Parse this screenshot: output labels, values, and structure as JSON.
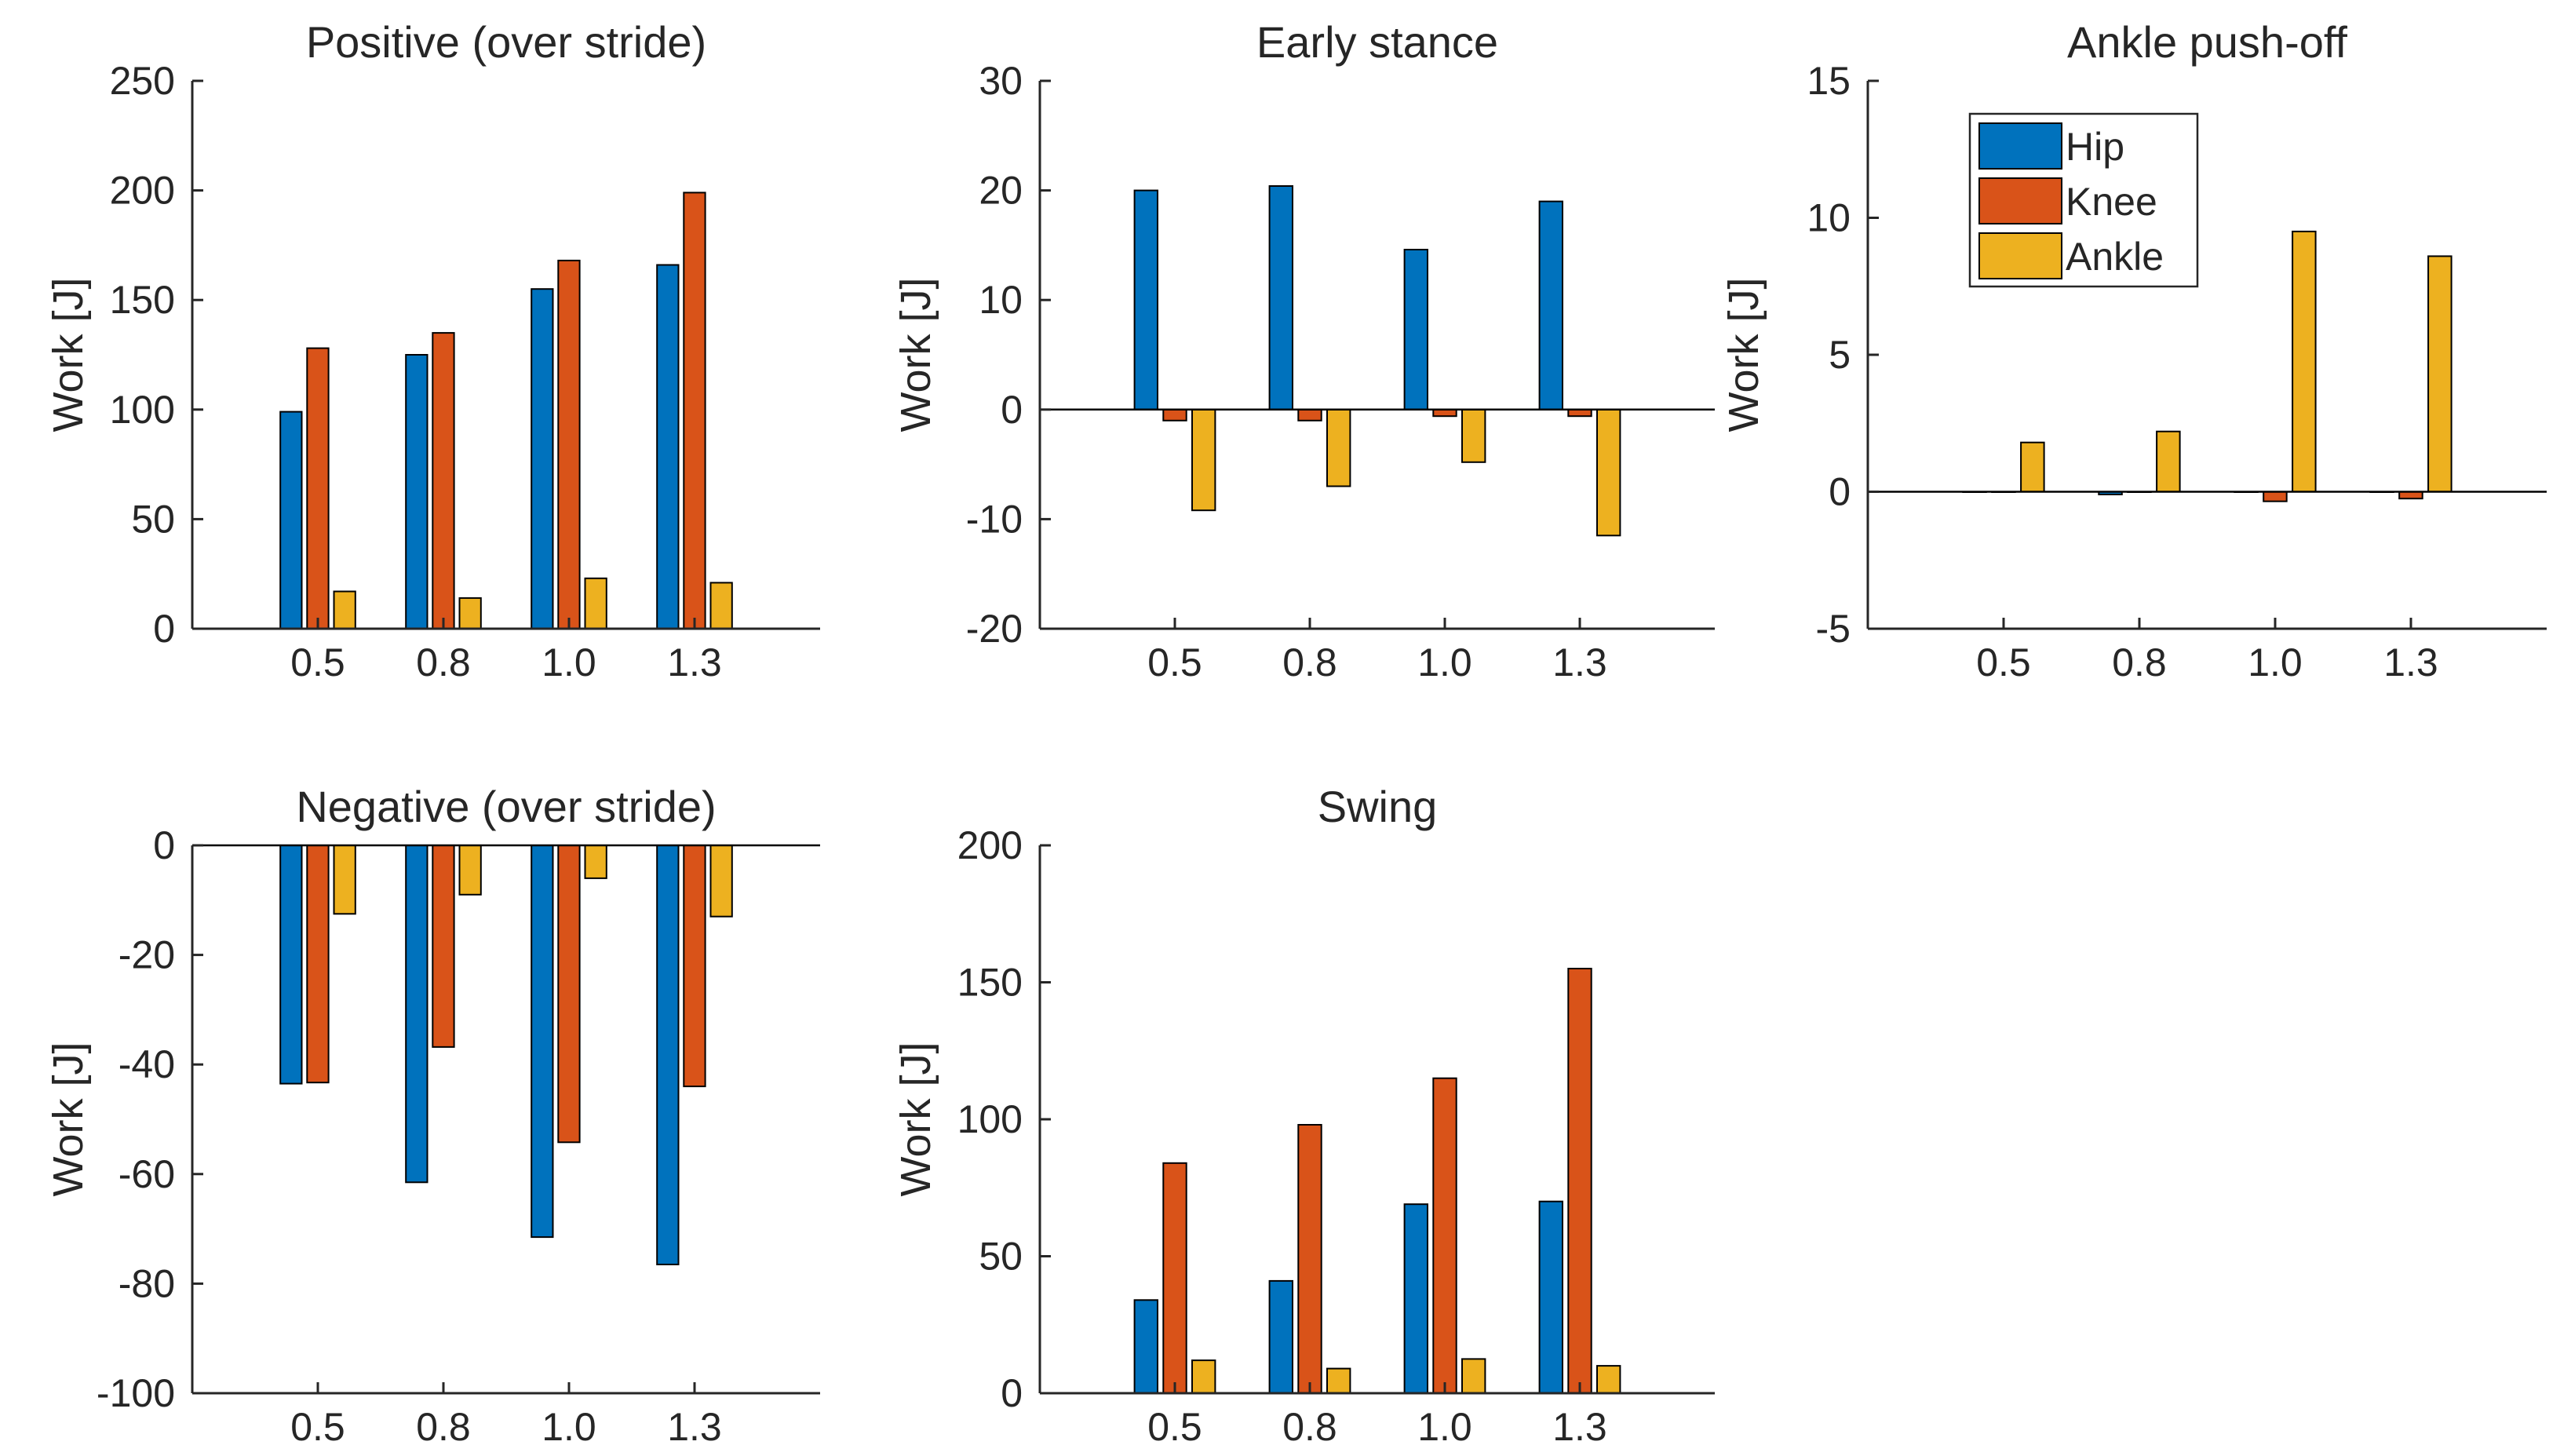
{
  "colors": {
    "hip": "#0072BD",
    "knee": "#D95319",
    "ankle": "#EDB120",
    "axis": "#262626",
    "background": "#ffffff"
  },
  "legend": {
    "placement": "top-left of Ankle push-off panel",
    "items": [
      "Hip",
      "Knee",
      "Ankle"
    ]
  },
  "chart_data": [
    {
      "type": "bar",
      "title": "Positive (over stride)",
      "xlabel": "",
      "ylabel": "Work [J]",
      "categories": [
        "0.5",
        "0.8",
        "1.0",
        "1.3"
      ],
      "ylim": [
        0,
        250
      ],
      "yticks": [
        0,
        50,
        100,
        150,
        200,
        250
      ],
      "ytick_labels": [
        "0",
        "50",
        "100",
        "150",
        "200",
        "250"
      ],
      "series": [
        {
          "name": "Hip",
          "values": [
            99,
            125,
            155,
            166
          ]
        },
        {
          "name": "Knee",
          "values": [
            128,
            135,
            168,
            199
          ]
        },
        {
          "name": "Ankle",
          "values": [
            17,
            14,
            23,
            21
          ]
        }
      ]
    },
    {
      "type": "bar",
      "title": "Early stance",
      "xlabel": "",
      "ylabel": "Work [J]",
      "categories": [
        "0.5",
        "0.8",
        "1.0",
        "1.3"
      ],
      "ylim": [
        -20,
        30
      ],
      "yticks": [
        -20,
        -10,
        0,
        10,
        20,
        30
      ],
      "ytick_labels": [
        "-20",
        "-10",
        "0",
        "10",
        "20",
        "30"
      ],
      "series": [
        {
          "name": "Hip",
          "values": [
            20,
            20.4,
            14.6,
            19
          ]
        },
        {
          "name": "Knee",
          "values": [
            -1,
            -1,
            -0.6,
            -0.6
          ]
        },
        {
          "name": "Ankle",
          "values": [
            -9.2,
            -7,
            -4.8,
            -11.5
          ]
        }
      ]
    },
    {
      "type": "bar",
      "title": "Ankle push-off",
      "xlabel": "",
      "ylabel": "Work [J]",
      "categories": [
        "0.5",
        "0.8",
        "1.0",
        "1.3"
      ],
      "ylim": [
        -5,
        15
      ],
      "yticks": [
        -5,
        0,
        5,
        10,
        15
      ],
      "ytick_labels": [
        "-5",
        "0",
        "5",
        "10",
        "15"
      ],
      "series": [
        {
          "name": "Hip",
          "values": [
            0,
            -0.1,
            0,
            0
          ]
        },
        {
          "name": "Knee",
          "values": [
            0,
            0,
            -0.35,
            -0.25
          ]
        },
        {
          "name": "Ankle",
          "values": [
            1.8,
            2.2,
            9.5,
            8.6
          ]
        }
      ]
    },
    {
      "type": "bar",
      "title": "Negative (over stride)",
      "xlabel": "",
      "ylabel": "Work [J]",
      "categories": [
        "0.5",
        "0.8",
        "1.0",
        "1.3"
      ],
      "ylim": [
        -100,
        0
      ],
      "yticks": [
        -100,
        -80,
        -60,
        -40,
        -20,
        0
      ],
      "ytick_labels": [
        "-100",
        "-80",
        "-60",
        "-40",
        "-20",
        "0"
      ],
      "series": [
        {
          "name": "Hip",
          "values": [
            -43.5,
            -61.5,
            -71.5,
            -76.5
          ]
        },
        {
          "name": "Knee",
          "values": [
            -43.3,
            -36.8,
            -54.2,
            -44
          ]
        },
        {
          "name": "Ankle",
          "values": [
            -12.5,
            -9,
            -6,
            -13
          ]
        }
      ]
    },
    {
      "type": "bar",
      "title": "Swing",
      "xlabel": "",
      "ylabel": "Work [J]",
      "categories": [
        "0.5",
        "0.8",
        "1.0",
        "1.3"
      ],
      "ylim": [
        0,
        200
      ],
      "yticks": [
        0,
        50,
        100,
        150,
        200
      ],
      "ytick_labels": [
        "0",
        "50",
        "100",
        "150",
        "200"
      ],
      "series": [
        {
          "name": "Hip",
          "values": [
            34,
            41,
            69,
            70
          ]
        },
        {
          "name": "Knee",
          "values": [
            84,
            98,
            115,
            155
          ]
        },
        {
          "name": "Ankle",
          "values": [
            12,
            9,
            12.5,
            10
          ]
        }
      ]
    }
  ]
}
